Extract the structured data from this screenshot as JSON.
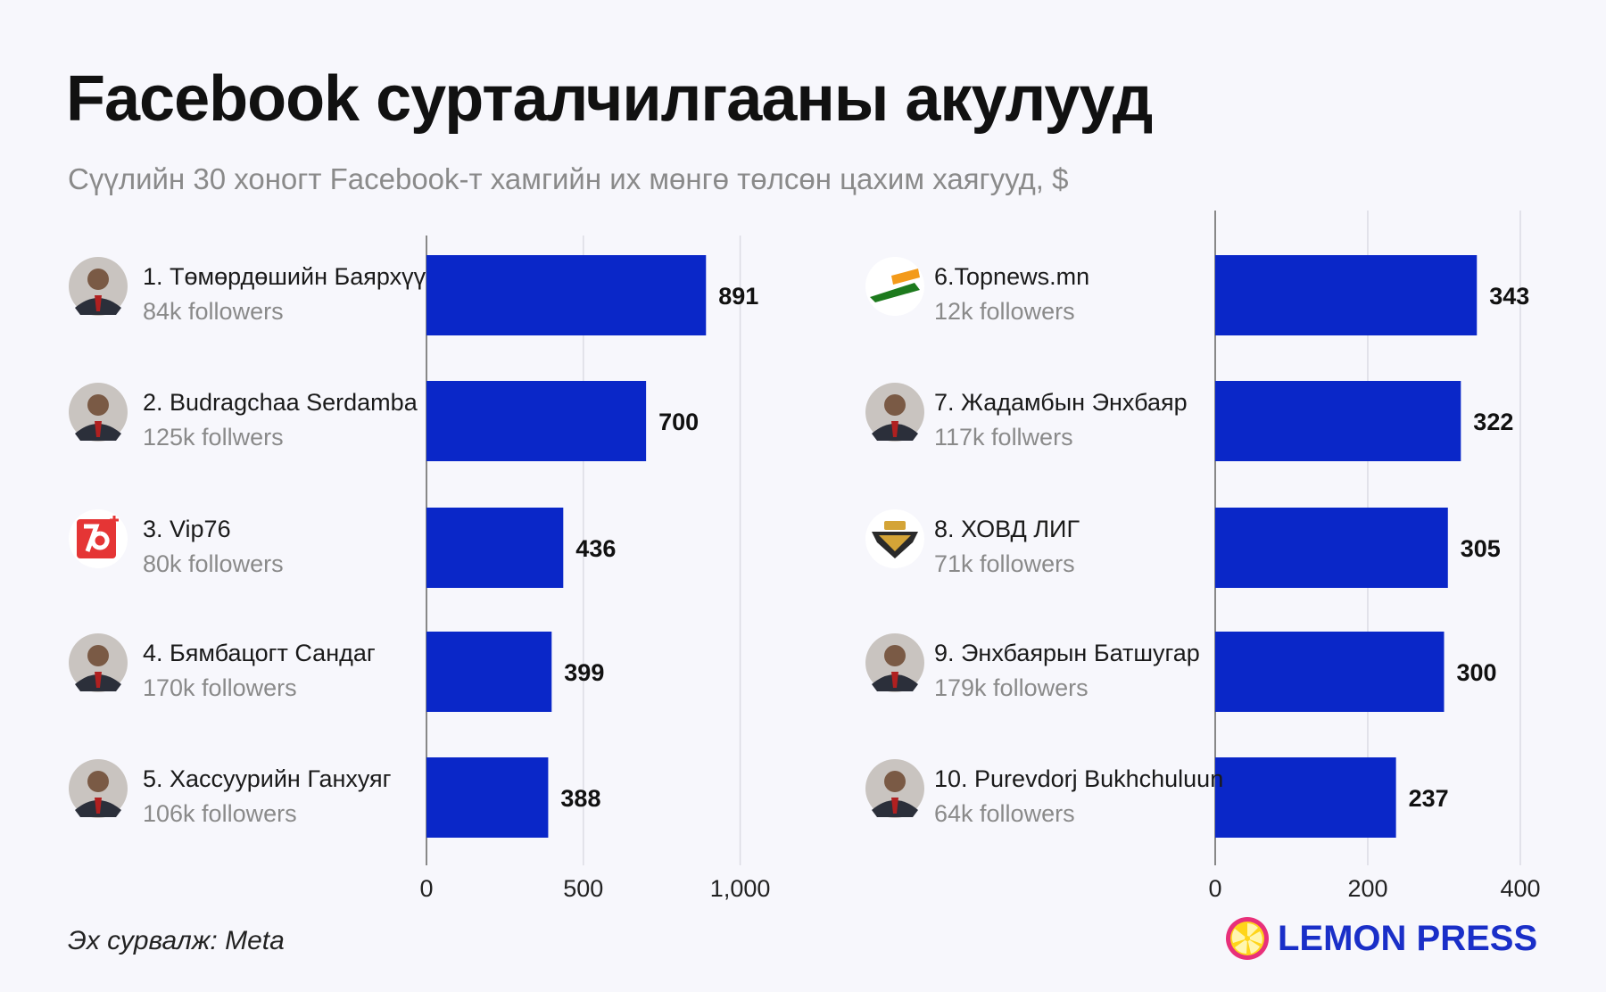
{
  "title": "Facebook сурталчилгааны акулууд",
  "subtitle": "Сүүлийн 30 хоногт Facebook-т хамгийн их мөнгө төлсөн цахим хаягууд, $",
  "source": "Эх сурвалж: Meta",
  "brand": "LEMON PRESS",
  "colors": {
    "bar": "#0a27c8",
    "brand": "#1a2fc8",
    "brand_icon": "#ffd51a",
    "brand_ring": "#e8307a"
  },
  "chart_data": [
    {
      "type": "bar",
      "orientation": "horizontal",
      "categories": [
        "1. Төмөрдөшийн Баярхүү",
        "2. Budragchaa Serdamba",
        "3. Vip76",
        "4. Бямбацогт Сандаг",
        "5. Хассуурийн Ганхуяг"
      ],
      "followers": [
        "84k followers",
        "125k follwers",
        "80k followers",
        "170k followers",
        "106k followers"
      ],
      "avatars": [
        "avatar-photo",
        "avatar-photo",
        "vip76-logo",
        "avatar-photo",
        "avatar-photo"
      ],
      "values": [
        891,
        700,
        436,
        399,
        388
      ],
      "value_labels": [
        "891",
        "700",
        "436",
        "399",
        "388"
      ],
      "xlim": [
        0,
        1300
      ],
      "xticks": [
        0,
        500,
        1000
      ],
      "xtick_labels": [
        "0",
        "500",
        "1,000"
      ],
      "grid": true
    },
    {
      "type": "bar",
      "orientation": "horizontal",
      "categories": [
        "6.Topnews.mn",
        "7. Жадамбын Энхбаяр",
        "8. ХОВД ЛИГ",
        "9. Энхбаярын Батшугар",
        "10. Purevdorj Bukhchuluun"
      ],
      "followers": [
        "12k followers",
        "117k follwers",
        "71k followers",
        "179k followers",
        "64k followers"
      ],
      "avatars": [
        "topnews-logo",
        "avatar-photo",
        "hovd-lig-logo",
        "avatar-photo",
        "avatar-photo"
      ],
      "values": [
        343,
        322,
        305,
        300,
        237
      ],
      "value_labels": [
        "343",
        "322",
        "305",
        "300",
        "237"
      ],
      "xlim": [
        0,
        420
      ],
      "xticks": [
        0,
        200,
        400
      ],
      "xtick_labels": [
        "0",
        "200",
        "400"
      ],
      "grid": true
    }
  ]
}
